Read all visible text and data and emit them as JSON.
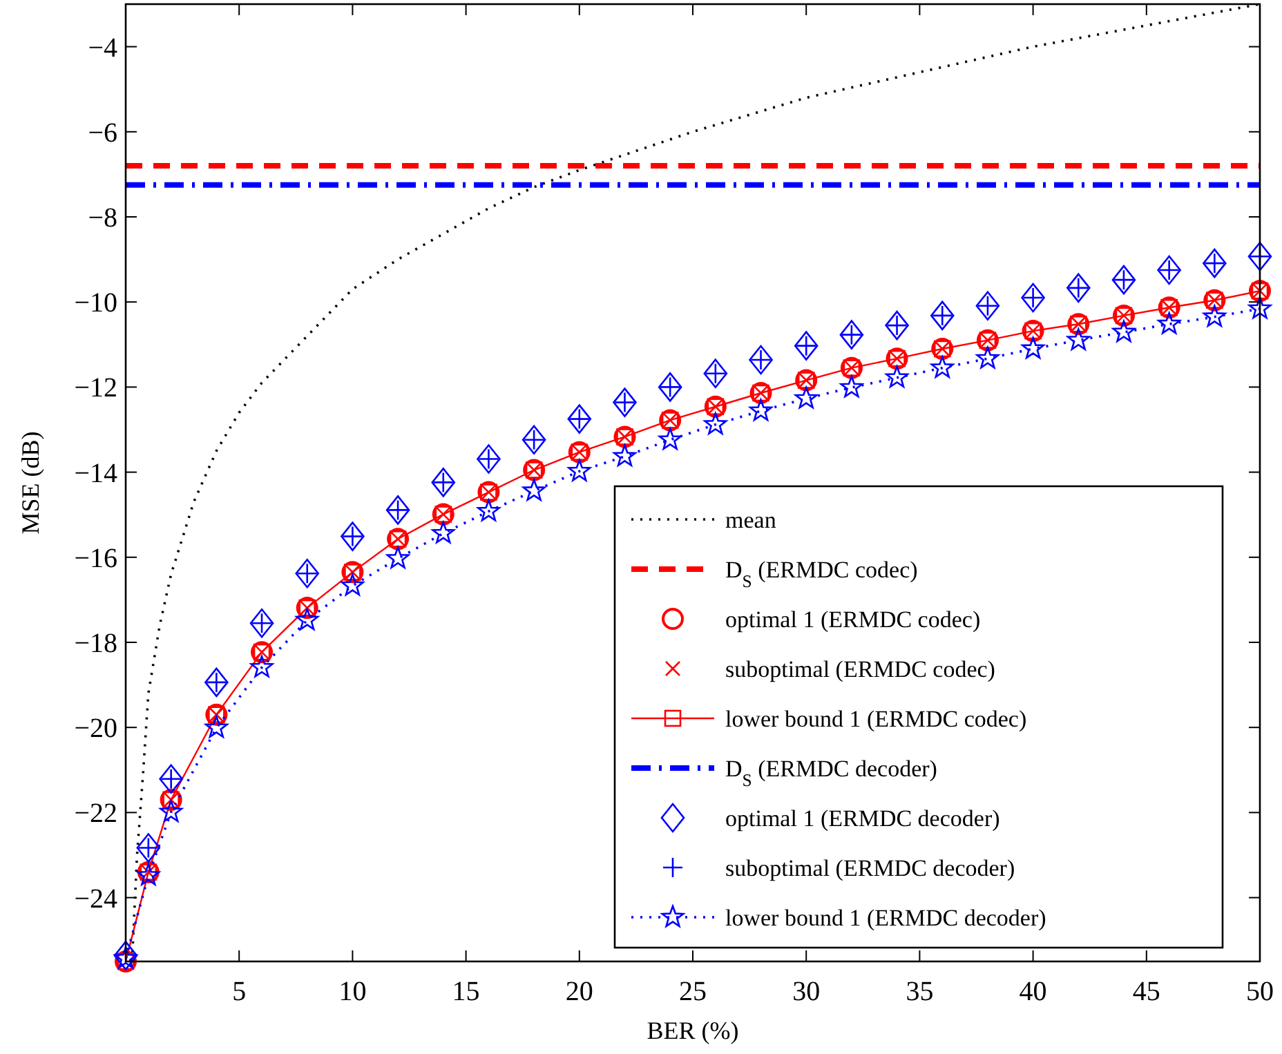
{
  "chart_data": {
    "type": "line",
    "xlabel": "BER (%)",
    "ylabel": "MSE (dB)",
    "xlim": [
      0,
      50
    ],
    "ylim": [
      -25.5,
      -3
    ],
    "xticks": [
      5,
      10,
      15,
      20,
      25,
      30,
      35,
      40,
      45,
      50
    ],
    "yticks": [
      -24,
      -22,
      -20,
      -18,
      -16,
      -14,
      -12,
      -10,
      -8,
      -6,
      -4
    ],
    "grid": false,
    "legend": "bottom right",
    "series": [
      {
        "name": "mean",
        "type": "line",
        "color": "#000000",
        "line_style": "dotted",
        "marker": "none",
        "x": [
          0.28,
          0.5,
          0.75,
          1,
          1.5,
          2,
          3,
          4,
          5,
          6,
          8,
          10,
          12,
          14,
          16,
          18,
          20,
          25,
          30,
          35,
          40,
          45,
          50
        ],
        "values": [
          -25.5,
          -23,
          -21.2,
          -19.2,
          -17.6,
          -16.4,
          -14.7,
          -13.5,
          -12.6,
          -11.9,
          -10.8,
          -9.7,
          -9,
          -8.4,
          -7.8,
          -7.3,
          -6.9,
          -6,
          -5.2,
          -4.6,
          -4,
          -3.5,
          -3
        ]
      },
      {
        "name": "D$_{S}$ (ERMDC codec)",
        "type": "line",
        "color": "#ff0000",
        "line_style": "dashed",
        "marker": "none",
        "x": [
          0,
          50
        ],
        "values": [
          -6.8,
          -6.8
        ]
      },
      {
        "name": "optimal 1 (ERMDC codec)",
        "type": "scatter",
        "color": "#ff0000",
        "marker": "circle",
        "x": [
          0,
          1,
          2,
          4,
          6,
          8,
          10,
          12,
          14,
          16,
          18,
          20,
          22,
          24,
          26,
          28,
          30,
          32,
          34,
          36,
          38,
          40,
          42,
          44,
          46,
          48,
          50
        ],
        "values": [
          -25.5,
          -23.4,
          -21.7,
          -19.7,
          -18.23,
          -17.19,
          -16.35,
          -15.57,
          -14.99,
          -14.47,
          -13.95,
          -13.53,
          -13.17,
          -12.78,
          -12.46,
          -12.14,
          -11.84,
          -11.55,
          -11.33,
          -11.1,
          -10.9,
          -10.68,
          -10.52,
          -10.32,
          -10.13,
          -9.96,
          -9.74
        ]
      },
      {
        "name": "suboptimal (ERMDC codec)",
        "type": "scatter",
        "color": "#ff0000",
        "marker": "cross",
        "x": [
          1,
          2,
          4,
          6,
          8,
          10,
          12,
          14,
          16,
          18,
          20,
          22,
          24,
          26,
          28,
          30,
          32,
          34,
          36,
          38,
          40,
          42,
          44,
          46,
          48,
          50
        ],
        "values": [
          -23.4,
          -21.7,
          -19.7,
          -18.23,
          -17.19,
          -16.35,
          -15.57,
          -14.99,
          -14.47,
          -13.95,
          -13.53,
          -13.17,
          -12.78,
          -12.46,
          -12.14,
          -11.84,
          -11.55,
          -11.33,
          -11.1,
          -10.9,
          -10.68,
          -10.52,
          -10.32,
          -10.13,
          -9.96,
          -9.74
        ]
      },
      {
        "name": "lower bound 1 (ERMDC codec)",
        "type": "line",
        "color": "#ff0000",
        "line_style": "solid",
        "marker": "square",
        "x": [
          0,
          1,
          2,
          4,
          6,
          8,
          10,
          12,
          14,
          16,
          18,
          20,
          22,
          24,
          26,
          28,
          30,
          32,
          34,
          36,
          38,
          40,
          42,
          44,
          46,
          48,
          50
        ],
        "values": [
          -25.5,
          -23.4,
          -21.7,
          -19.7,
          -18.23,
          -17.19,
          -16.35,
          -15.57,
          -14.99,
          -14.47,
          -13.95,
          -13.53,
          -13.17,
          -12.78,
          -12.46,
          -12.14,
          -11.84,
          -11.55,
          -11.33,
          -11.1,
          -10.9,
          -10.68,
          -10.52,
          -10.32,
          -10.13,
          -9.96,
          -9.74
        ]
      },
      {
        "name": "D$_{S}$ (ERMDC decoder)",
        "type": "line",
        "color": "#0000ff",
        "line_style": "dashdot",
        "marker": "none",
        "x": [
          0,
          50
        ],
        "values": [
          -7.25,
          -7.25
        ]
      },
      {
        "name": "optimal 1 (ERMDC decoder)",
        "type": "scatter",
        "color": "#0000ff",
        "marker": "diamond",
        "x": [
          0,
          1,
          2,
          4,
          6,
          8,
          10,
          12,
          14,
          16,
          18,
          20,
          22,
          24,
          26,
          28,
          30,
          32,
          34,
          36,
          38,
          40,
          42,
          44,
          46,
          48,
          50
        ],
        "values": [
          -25.36,
          -22.83,
          -21.21,
          -18.94,
          -17.55,
          -16.38,
          -15.51,
          -14.89,
          -14.24,
          -13.69,
          -13.24,
          -12.75,
          -12.36,
          -12,
          -11.68,
          -11.36,
          -11.03,
          -10.77,
          -10.55,
          -10.32,
          -10.09,
          -9.9,
          -9.67,
          -9.48,
          -9.25,
          -9.09,
          -8.93
        ]
      },
      {
        "name": "suboptimal (ERMDC decoder)",
        "type": "scatter",
        "color": "#0000ff",
        "marker": "plus",
        "x": [
          1,
          2,
          4,
          6,
          8,
          10,
          12,
          14,
          16,
          18,
          20,
          22,
          24,
          26,
          28,
          30,
          32,
          34,
          36,
          38,
          40,
          42,
          44,
          46,
          48,
          50
        ],
        "values": [
          -22.83,
          -21.21,
          -18.94,
          -17.55,
          -16.38,
          -15.51,
          -14.89,
          -14.24,
          -13.69,
          -13.24,
          -12.75,
          -12.36,
          -12,
          -11.68,
          -11.36,
          -11.03,
          -10.77,
          -10.55,
          -10.32,
          -10.09,
          -9.9,
          -9.67,
          -9.48,
          -9.25,
          -9.09,
          -8.93
        ]
      },
      {
        "name": "lower bound 1 (ERMDC decoder)",
        "type": "line",
        "color": "#0000ff",
        "line_style": "dotted",
        "marker": "star",
        "x": [
          0,
          1,
          2,
          4,
          6,
          8,
          10,
          12,
          14,
          16,
          18,
          20,
          22,
          24,
          26,
          28,
          30,
          32,
          34,
          36,
          38,
          40,
          42,
          44,
          46,
          48,
          50
        ],
        "values": [
          -25.43,
          -23.48,
          -21.99,
          -20.01,
          -18.59,
          -17.48,
          -16.67,
          -16.03,
          -15.44,
          -14.92,
          -14.44,
          -13.98,
          -13.63,
          -13.24,
          -12.88,
          -12.56,
          -12.27,
          -12.01,
          -11.78,
          -11.55,
          -11.33,
          -11.1,
          -10.9,
          -10.71,
          -10.52,
          -10.35,
          -10.16
        ]
      }
    ]
  }
}
